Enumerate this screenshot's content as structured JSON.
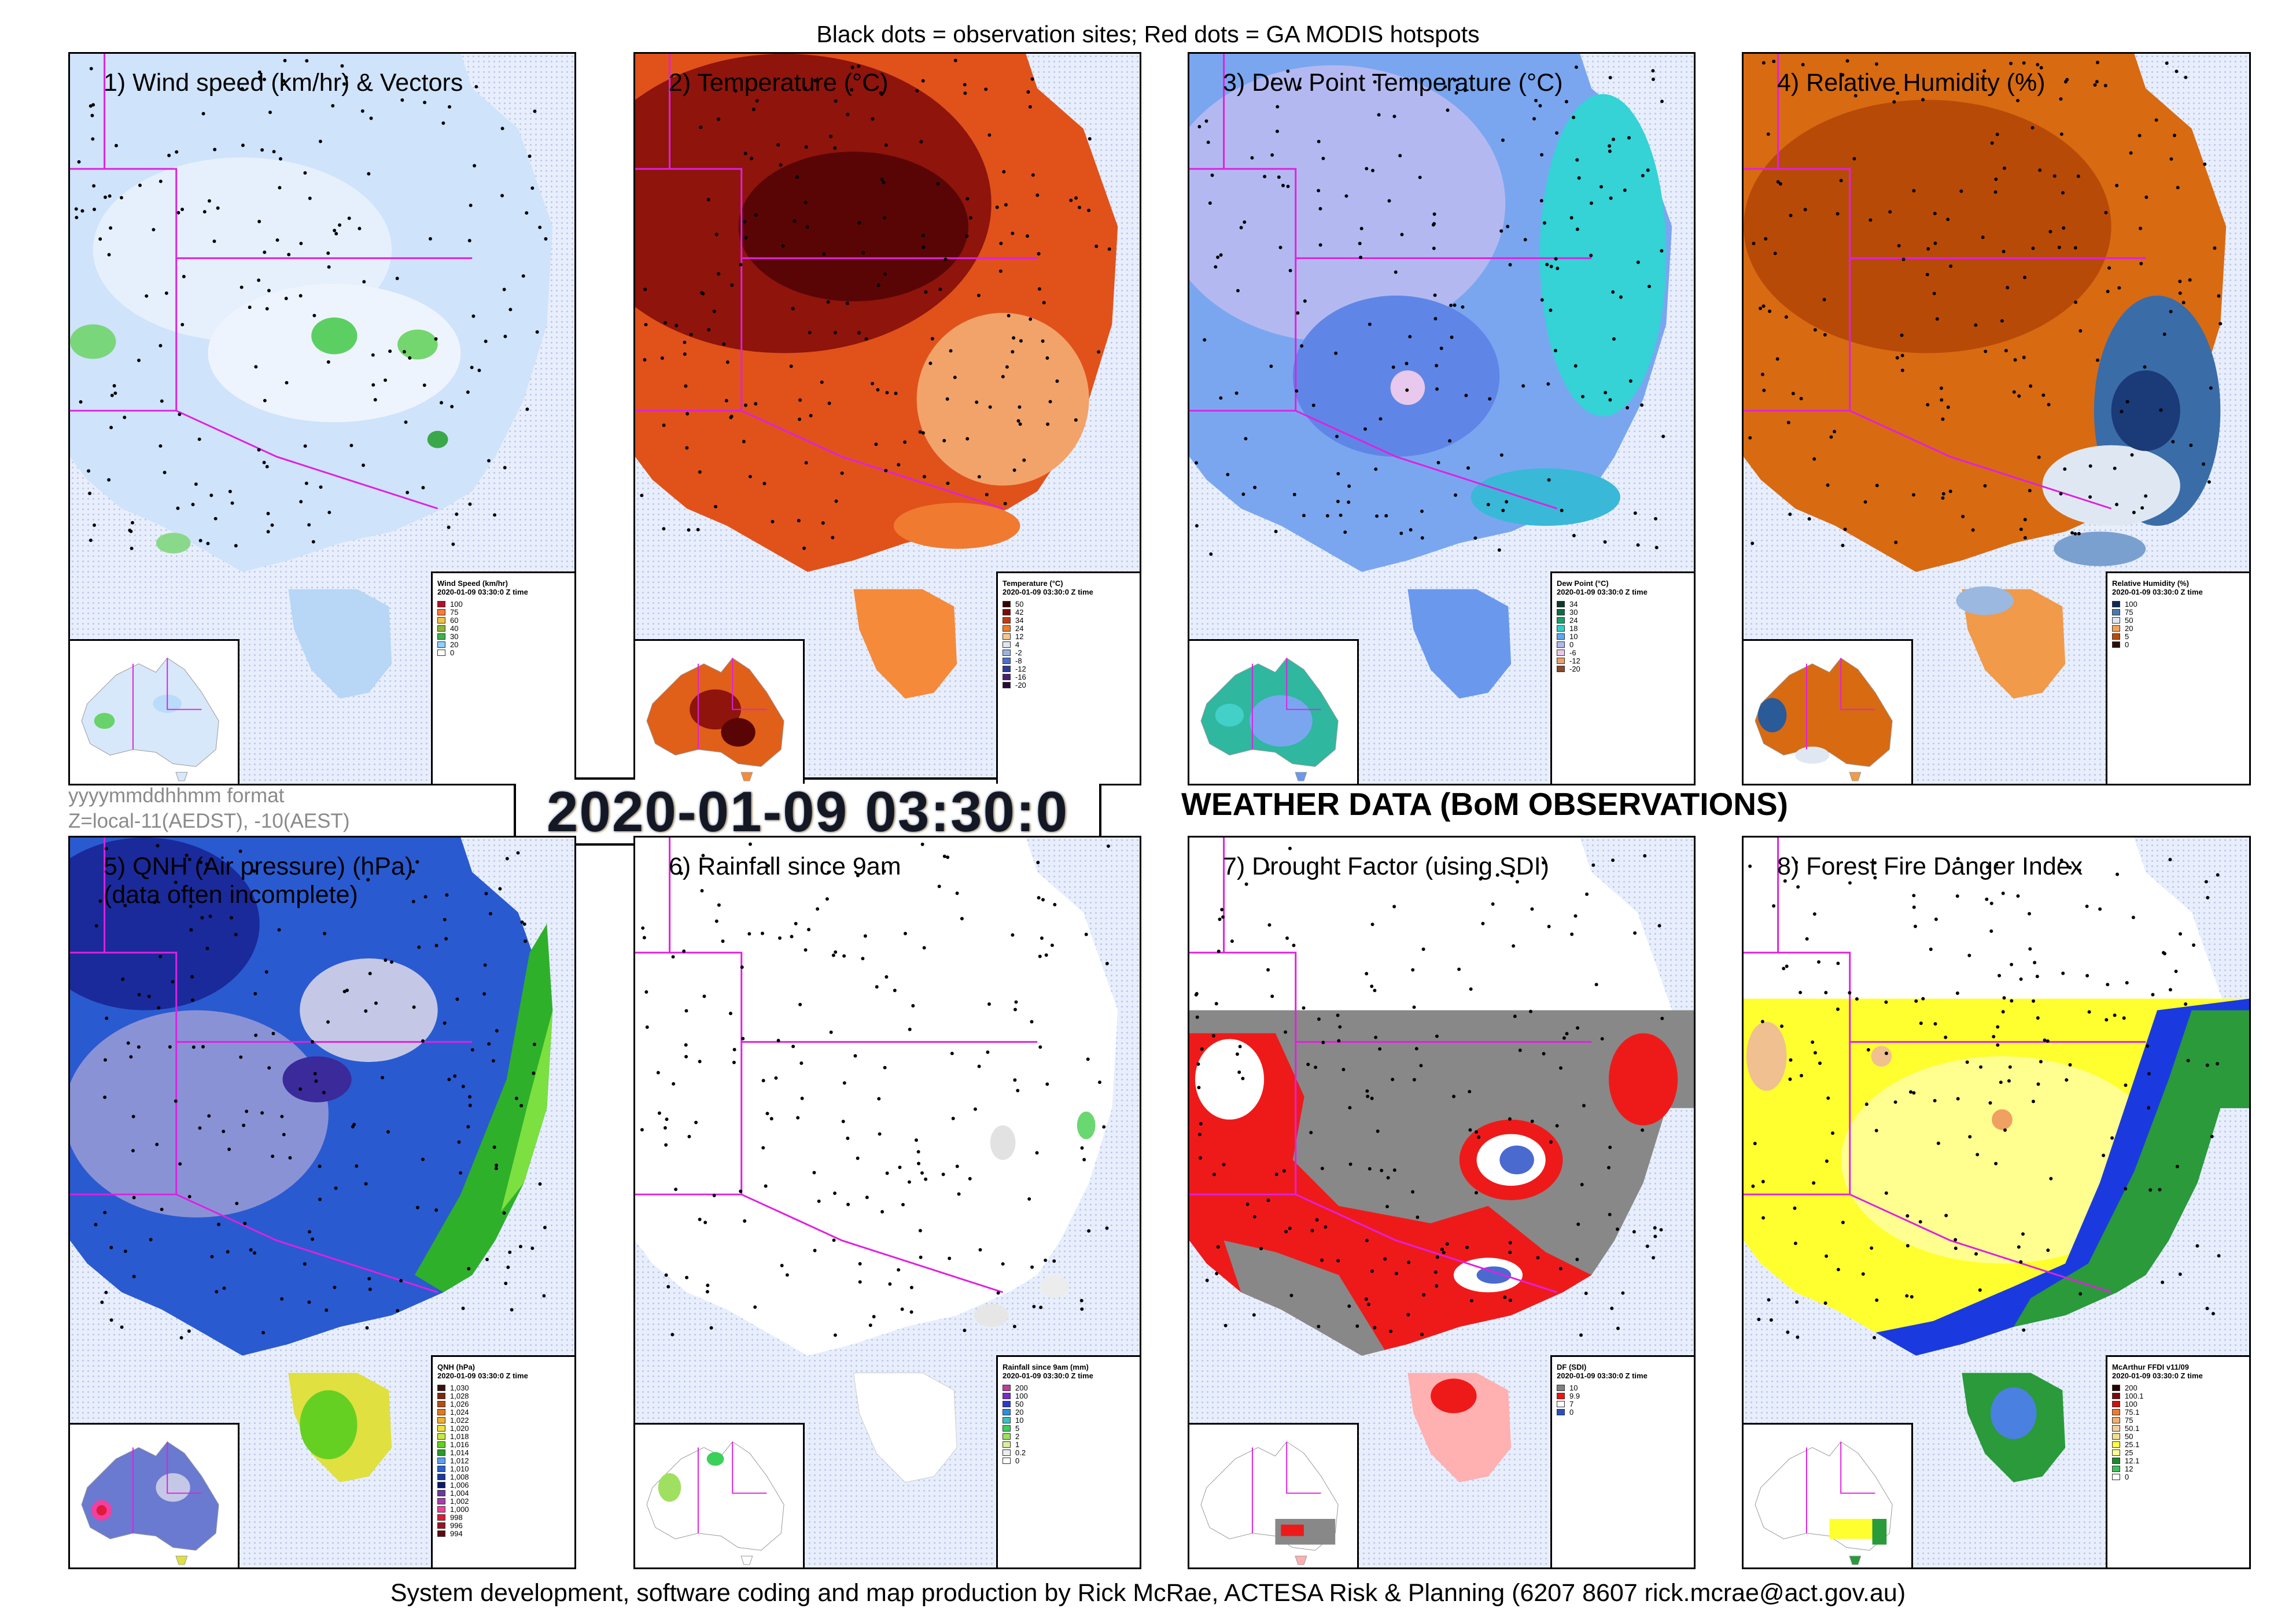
{
  "header": "Black dots = observation sites; Red dots = GA MODIS hotspots",
  "footer": "System development, software coding and map production by Rick McRae, ACTESA Risk & Planning (6207 8607 rick.mcrae@act.gov.au)",
  "datetime": "2020-01-09 03:30:0",
  "format_note": "yyyymmddhhmm format",
  "zone_note": "Z=local-11(AEDST), -10(AEST)",
  "weather_title": "WEATHER DATA (BoM OBSERVATIONS)",
  "panels": [
    {
      "title": "1) Wind speed (km/hr) & Vectors",
      "legend": {
        "title": "Wind Speed (km/hr)",
        "subtitle": "2020-01-09 03:30:0 Z time",
        "items": [
          {
            "label": "100",
            "color": "#b0102a"
          },
          {
            "label": "75",
            "color": "#ff7a3a"
          },
          {
            "label": "60",
            "color": "#f2c14a"
          },
          {
            "label": "40",
            "color": "#8fb339"
          },
          {
            "label": "30",
            "color": "#3fb04a"
          },
          {
            "label": "20",
            "color": "#8fd0ff"
          },
          {
            "label": "0",
            "color": "#ffffff"
          }
        ]
      }
    },
    {
      "title": "2) Temperature (°C)",
      "legend": {
        "title": "Temperature (°C)",
        "subtitle": "2020-01-09 03:30:0 Z time",
        "items": [
          {
            "label": "50",
            "color": "#3a0000"
          },
          {
            "label": "42",
            "color": "#7a0a0a"
          },
          {
            "label": "34",
            "color": "#c23a12"
          },
          {
            "label": "24",
            "color": "#f07b24"
          },
          {
            "label": "12",
            "color": "#f6c890"
          },
          {
            "label": "4",
            "color": "#dfe6f5"
          },
          {
            "label": "-2",
            "color": "#9db3e6"
          },
          {
            "label": "-8",
            "color": "#4d6fd0"
          },
          {
            "label": "-12",
            "color": "#2b3d9a"
          },
          {
            "label": "-16",
            "color": "#4b1f77"
          },
          {
            "label": "-20",
            "color": "#2a0a3a"
          }
        ]
      }
    },
    {
      "title": "3) Dew Point Temperature (°C)",
      "legend": {
        "title": "Dew Point (°C)",
        "subtitle": "2020-01-09 03:30:0 Z time",
        "items": [
          {
            "label": "34",
            "color": "#0d3b2a"
          },
          {
            "label": "30",
            "color": "#126b44"
          },
          {
            "label": "24",
            "color": "#1aa070"
          },
          {
            "label": "18",
            "color": "#33d0c8"
          },
          {
            "label": "10",
            "color": "#5fa7f0"
          },
          {
            "label": "0",
            "color": "#b0b8f0"
          },
          {
            "label": "-6",
            "color": "#e7c9e8"
          },
          {
            "label": "-12",
            "color": "#e8a070"
          },
          {
            "label": "-20",
            "color": "#8a4a2a"
          }
        ]
      }
    },
    {
      "title": "4) Relative Humidity (%)",
      "legend": {
        "title": "Relative Humidity (%)",
        "subtitle": "2020-01-09 03:30:0 Z time",
        "items": [
          {
            "label": "100",
            "color": "#0b2a5a"
          },
          {
            "label": "75",
            "color": "#4a78b0"
          },
          {
            "label": "50",
            "color": "#dfe8f2"
          },
          {
            "label": "20",
            "color": "#f2a35a"
          },
          {
            "label": "5",
            "color": "#b84a0a"
          },
          {
            "label": "0",
            "color": "#2a1000"
          }
        ]
      }
    },
    {
      "title": "5) QNH (Air pressure) (hPa)\n(data often incomplete)",
      "legend": {
        "title": "QNH (hPa)",
        "subtitle": "2020-01-09 03:30:0 Z time",
        "items": [
          {
            "label": "1,030",
            "color": "#3a1010"
          },
          {
            "label": "1,028",
            "color": "#7a2a10"
          },
          {
            "label": "1,026",
            "color": "#b05018"
          },
          {
            "label": "1,024",
            "color": "#e07a20"
          },
          {
            "label": "1,022",
            "color": "#f0b030"
          },
          {
            "label": "1,020",
            "color": "#f0e040"
          },
          {
            "label": "1,018",
            "color": "#c8e840"
          },
          {
            "label": "1,016",
            "color": "#66d022"
          },
          {
            "label": "1,014",
            "color": "#2a9a2a"
          },
          {
            "label": "1,012",
            "color": "#5aa0f0"
          },
          {
            "label": "1,010",
            "color": "#2a60d0"
          },
          {
            "label": "1,008",
            "color": "#1a3aa0"
          },
          {
            "label": "1,006",
            "color": "#0a1a6a"
          },
          {
            "label": "1,004",
            "color": "#6a3aa0"
          },
          {
            "label": "1,002",
            "color": "#b03ab0"
          },
          {
            "label": "1,000",
            "color": "#f040a0"
          },
          {
            "label": "998",
            "color": "#e01a3a"
          },
          {
            "label": "996",
            "color": "#a01020"
          },
          {
            "label": "994",
            "color": "#600a10"
          }
        ]
      }
    },
    {
      "title": "6) Rainfall since 9am",
      "legend": {
        "title": "Rainfall since 9am (mm)",
        "subtitle": "2020-01-09 03:30:0 Z time",
        "items": [
          {
            "label": "200",
            "color": "#c03aa0"
          },
          {
            "label": "100",
            "color": "#7a2ad0"
          },
          {
            "label": "50",
            "color": "#2a3ad0"
          },
          {
            "label": "20",
            "color": "#2a90e0"
          },
          {
            "label": "10",
            "color": "#3ac0c0"
          },
          {
            "label": "5",
            "color": "#3ad05a"
          },
          {
            "label": "2",
            "color": "#a0e060"
          },
          {
            "label": "1",
            "color": "#d8f0a0"
          },
          {
            "label": "0.2",
            "color": "#eeeeee"
          },
          {
            "label": "0",
            "color": "#ffffff"
          }
        ]
      }
    },
    {
      "title": "7) Drought Factor (using SDI)",
      "legend": {
        "title": "DF (SDI)",
        "subtitle": "2020-01-09 03:30:0 Z time",
        "items": [
          {
            "label": "10",
            "color": "#808080"
          },
          {
            "label": "9.9",
            "color": "#ff1010"
          },
          {
            "label": "7",
            "color": "#ffffff"
          },
          {
            "label": "0",
            "color": "#2a50c0"
          }
        ]
      }
    },
    {
      "title": "8) Forest Fire Danger Index",
      "legend": {
        "title": "McArthur FFDI v11/09",
        "subtitle": "2020-01-09 03:30:0 Z time",
        "items": [
          {
            "label": "200",
            "color": "#2a0000"
          },
          {
            "label": "100.1",
            "color": "#7a0a0a"
          },
          {
            "label": "100",
            "color": "#d01010"
          },
          {
            "label": "75.1",
            "color": "#f07a30"
          },
          {
            "label": "75",
            "color": "#f0b070"
          },
          {
            "label": "50.1",
            "color": "#f0d0a0"
          },
          {
            "label": "50",
            "color": "#f0e090"
          },
          {
            "label": "25.1",
            "color": "#ffff40"
          },
          {
            "label": "25",
            "color": "#ffff90"
          },
          {
            "label": "12.1",
            "color": "#1a8a2a"
          },
          {
            "label": "12",
            "color": "#3ac05a"
          },
          {
            "label": "0",
            "color": "#ffffff"
          }
        ]
      }
    }
  ]
}
